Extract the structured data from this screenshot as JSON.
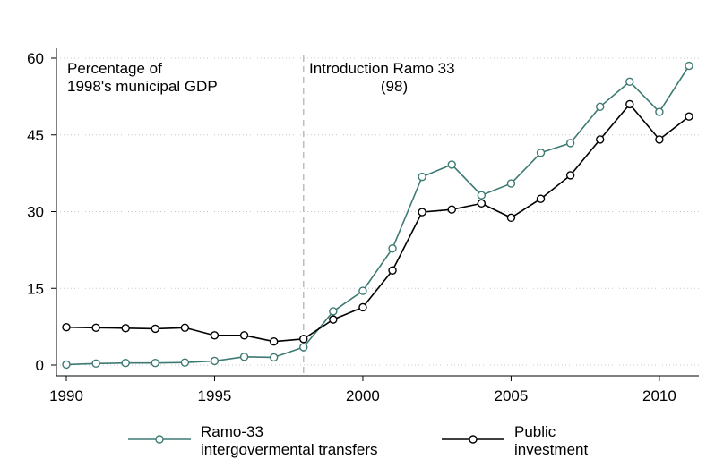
{
  "chart_data": {
    "type": "line",
    "x": [
      1990,
      1991,
      1992,
      1993,
      1994,
      1995,
      1996,
      1997,
      1998,
      1999,
      2000,
      2001,
      2002,
      2003,
      2004,
      2005,
      2006,
      2007,
      2008,
      2009,
      2010,
      2011
    ],
    "series": [
      {
        "name": "Ramo-33 intergovermental transfers",
        "legend_lines": [
          "Ramo-33",
          "intergovermental transfers"
        ],
        "color": "#3d7a73",
        "values": [
          0.1,
          0.3,
          0.4,
          0.4,
          0.5,
          0.8,
          1.6,
          1.5,
          3.5,
          10.5,
          14.5,
          22.8,
          36.8,
          39.2,
          33.2,
          35.5,
          41.5,
          43.4,
          50.5,
          55.4,
          49.5,
          58.5
        ]
      },
      {
        "name": "Public investment",
        "legend_lines": [
          "Public",
          "investment"
        ],
        "color": "#000000",
        "values": [
          7.4,
          7.3,
          7.2,
          7.1,
          7.3,
          5.8,
          5.8,
          4.6,
          5.1,
          8.9,
          11.3,
          18.5,
          29.9,
          30.4,
          31.6,
          28.8,
          32.5,
          37.1,
          44.1,
          51.0,
          44.1,
          48.6
        ]
      }
    ],
    "x_ticks": [
      1990,
      1995,
      2000,
      2005,
      2010
    ],
    "y_ticks": [
      0,
      15,
      30,
      45,
      60
    ],
    "xlim": [
      1990,
      2011
    ],
    "ylim": [
      0,
      60
    ],
    "grid": "horizontal dotted",
    "legend_position": "bottom",
    "annotations": {
      "left_lines": [
        "Percentage of",
        "1998's municipal GDP"
      ],
      "ref_line_x": 1998,
      "ref_label_lines": [
        "Introduction Ramo 33",
        "(98)"
      ]
    }
  }
}
